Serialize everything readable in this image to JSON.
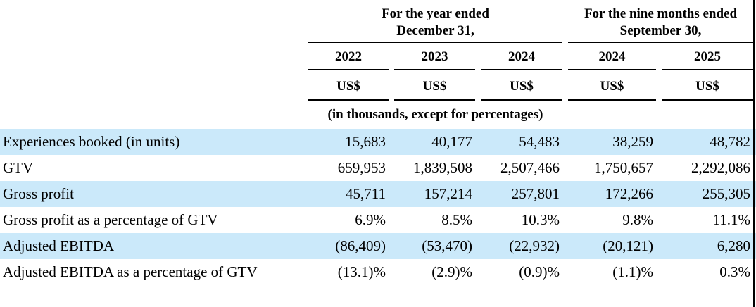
{
  "document": {
    "col_groups": [
      {
        "line1": "For the year ended",
        "line2": "December 31,"
      },
      {
        "line1": "For the nine months ended",
        "line2": "September 30,"
      }
    ],
    "year_columns": [
      "2022",
      "2023",
      "2024",
      "2024",
      "2025"
    ],
    "currency_labels": [
      "US$",
      "US$",
      "US$",
      "US$",
      "US$"
    ],
    "note": "(in thousands, except for percentages)",
    "rows": [
      {
        "label": "Experiences booked (in units)",
        "highlight": true,
        "values": [
          "15,683",
          "40,177",
          "54,483",
          "38,259",
          "48,782"
        ]
      },
      {
        "label": "GTV",
        "highlight": false,
        "values": [
          "659,953",
          "1,839,508",
          "2,507,466",
          "1,750,657",
          "2,292,086"
        ]
      },
      {
        "label": "Gross profit",
        "highlight": true,
        "values": [
          "45,711",
          "157,214",
          "257,801",
          "172,266",
          "255,305"
        ]
      },
      {
        "label": "Gross profit as a percentage of GTV",
        "highlight": false,
        "values": [
          "6.9%",
          "8.5%",
          "10.3%",
          "9.8%",
          "11.1%"
        ]
      },
      {
        "label": "Adjusted EBITDA",
        "highlight": true,
        "values": [
          "(86,409)",
          "(53,470)",
          "(22,932)",
          "(20,121)",
          "6,280"
        ]
      },
      {
        "label": "Adjusted EBITDA as a percentage of GTV",
        "highlight": false,
        "values": [
          "(13.1)%",
          "(2.9)%",
          "(0.9)%",
          "(1.1)%",
          "0.3%"
        ]
      }
    ]
  },
  "colors": {
    "highlight_row": "#cbe9fa",
    "rule": "#000000",
    "text": "#000000",
    "background": "#ffffff"
  }
}
